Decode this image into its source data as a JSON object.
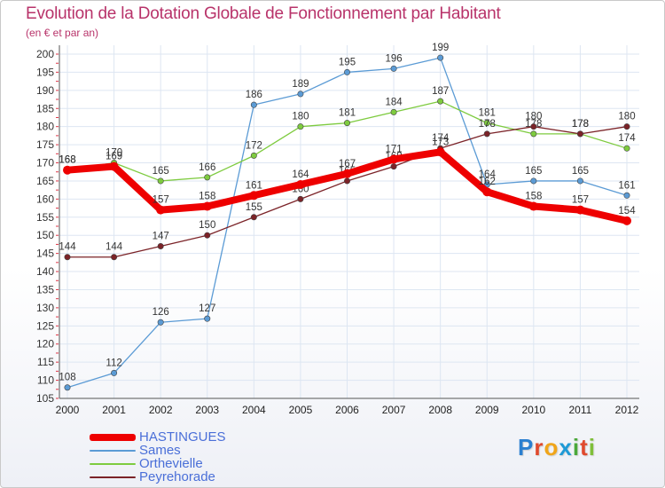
{
  "chart_data": {
    "type": "line",
    "title": "Evolution de la Dotation Globale de Fonctionnement par Habitant",
    "subtitle": "(en € et par an)",
    "x": [
      "2000",
      "2001",
      "2002",
      "2003",
      "2004",
      "2005",
      "2006",
      "2007",
      "2008",
      "2009",
      "2010",
      "2011",
      "2012"
    ],
    "ylim": [
      105,
      200
    ],
    "yticks": [
      105,
      110,
      115,
      120,
      125,
      130,
      135,
      140,
      145,
      150,
      155,
      160,
      165,
      170,
      175,
      180,
      185,
      190,
      195,
      200
    ],
    "grid": true,
    "series": [
      {
        "name": "Sames",
        "color": "#5b9bd5",
        "values": [
          108,
          112,
          126,
          127,
          186,
          189,
          195,
          196,
          199,
          164,
          165,
          165,
          161
        ]
      },
      {
        "name": "Orthevielle",
        "color": "#7ecb3f",
        "values": [
          168,
          170,
          165,
          166,
          172,
          180,
          181,
          184,
          187,
          181,
          178,
          178,
          174
        ]
      },
      {
        "name": "Peyrehorade",
        "color": "#7b2328",
        "values": [
          144,
          144,
          147,
          150,
          155,
          160,
          165,
          169,
          174,
          178,
          180,
          178,
          180
        ]
      },
      {
        "name": "HASTINGUES",
        "color": "#ee0000",
        "values": [
          168,
          169,
          157,
          158,
          161,
          164,
          167,
          171,
          173,
          162,
          158,
          157,
          154
        ]
      }
    ],
    "legend": [
      "HASTINGUES",
      "Sames",
      "Orthevielle",
      "Peyrehorade"
    ]
  },
  "logo": {
    "text": [
      "P",
      "r",
      "o",
      "x",
      "i",
      "t",
      "i"
    ],
    "colors": [
      "#2b7fd0",
      "#e0492d",
      "#f0a51a",
      "#1f9ad6",
      "#4aa83a",
      "#e0492d",
      "#7fbf3a"
    ]
  }
}
